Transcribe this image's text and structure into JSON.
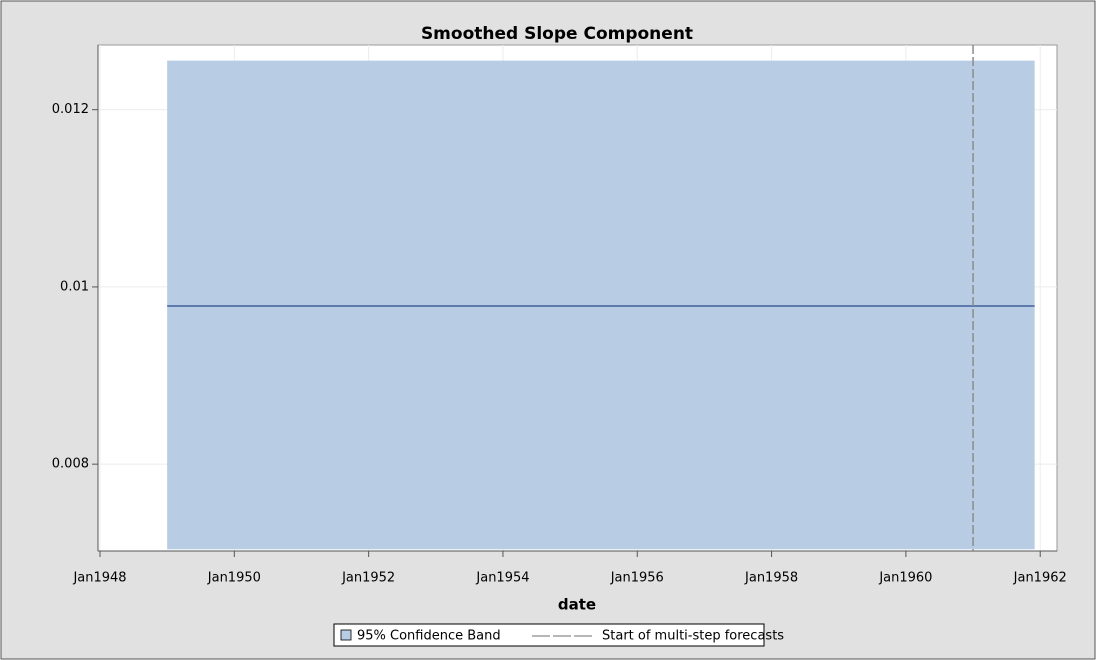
{
  "chart_data": {
    "type": "band_line",
    "title": "Smoothed Slope Component",
    "xlabel": "date",
    "xlim": [
      1947.97,
      1962.25
    ],
    "ylim": [
      0.00702,
      0.01273
    ],
    "xticks": [
      {
        "value": 1948,
        "label": "Jan1948"
      },
      {
        "value": 1950,
        "label": "Jan1950"
      },
      {
        "value": 1952,
        "label": "Jan1952"
      },
      {
        "value": 1954,
        "label": "Jan1954"
      },
      {
        "value": 1956,
        "label": "Jan1956"
      },
      {
        "value": 1958,
        "label": "Jan1958"
      },
      {
        "value": 1960,
        "label": "Jan1960"
      },
      {
        "value": 1962,
        "label": "Jan1962"
      }
    ],
    "yticks": [
      0.008,
      0.01,
      0.012
    ],
    "grid": true,
    "x": [
      1949,
      1961.917
    ],
    "series": [
      {
        "name": "95% Confidence Band",
        "type": "band",
        "color": "#b8cce4",
        "lower": [
          0.00704,
          0.00704
        ],
        "upper": [
          0.012554,
          0.012554
        ]
      },
      {
        "type": "line",
        "color": "#2a4a8a",
        "values": [
          0.009785,
          0.009785
        ]
      }
    ],
    "refline": {
      "x": 1961,
      "name": "Start of multi-step forecasts",
      "color": "#8c8c8c"
    }
  }
}
